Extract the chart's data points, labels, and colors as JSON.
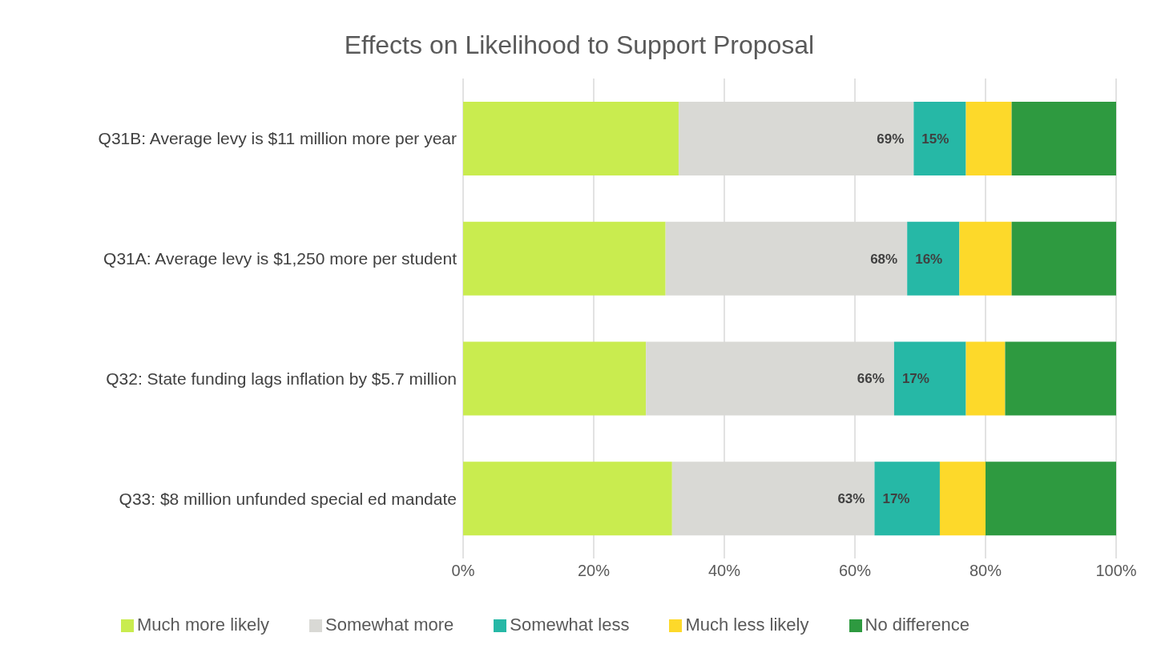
{
  "chart_data": {
    "type": "bar",
    "orientation": "horizontal",
    "stacked": true,
    "title": "Effects on Likelihood to Support Proposal",
    "categories": [
      "Q31B: Average levy is $11 million more per year",
      "Q31A: Average levy is $1,250 more per student",
      "Q32: State funding lags inflation by $5.7 million",
      "Q33: $8 million unfunded special ed mandate"
    ],
    "series": [
      {
        "name": "Much more likely",
        "color": "#c9ec4f",
        "values": [
          33,
          31,
          28,
          32
        ]
      },
      {
        "name": "Somewhat more",
        "color": "#d9d9d5",
        "values": [
          36,
          37,
          38,
          31
        ]
      },
      {
        "name": "Somewhat less",
        "color": "#26b8a6",
        "values": [
          8,
          8,
          11,
          10
        ]
      },
      {
        "name": "Much less likely",
        "color": "#fdd92a",
        "values": [
          7,
          8,
          6,
          7
        ]
      },
      {
        "name": "No difference",
        "color": "#2e9a40",
        "values": [
          16,
          16,
          17,
          20
        ]
      }
    ],
    "xlim": [
      0,
      100
    ],
    "xticks": [
      {
        "value": 0,
        "label": "0%"
      },
      {
        "value": 20,
        "label": "20%"
      },
      {
        "value": 40,
        "label": "40%"
      },
      {
        "value": 60,
        "label": "60%"
      },
      {
        "value": 80,
        "label": "80%"
      },
      {
        "value": 100,
        "label": "100%"
      }
    ],
    "annotations": [
      {
        "text": "69%",
        "x": 69,
        "y": "Q31B: Average levy is $11 million more per year"
      },
      {
        "text": "15%",
        "x": 69,
        "y": "Q31B: Average levy is $11 million more per year"
      },
      {
        "text": "68%",
        "x": 68,
        "y": "Q31A: Average levy is $1,250 more per student"
      },
      {
        "text": "16%",
        "x": 68,
        "y": "Q31A: Average levy is $1,250 more per student"
      },
      {
        "text": "66%",
        "x": 66,
        "y": "Q32: State funding lags inflation by $5.7 million"
      },
      {
        "text": "17%",
        "x": 66,
        "y": "Q32: State funding lags inflation by $5.7 million"
      },
      {
        "text": "63%",
        "x": 63,
        "y": "Q33: $8 million unfunded special ed mandate"
      },
      {
        "text": "17%",
        "x": 63,
        "y": "Q33: $8 million unfunded special ed mandate"
      }
    ],
    "grid": "x",
    "legend": "bottom"
  }
}
